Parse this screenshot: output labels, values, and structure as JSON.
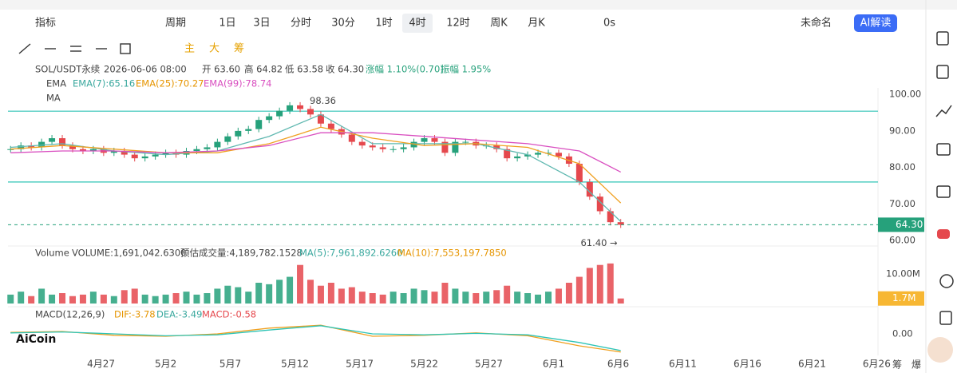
{
  "toolbar": {
    "indicator": "指标",
    "period": "周期",
    "intervals": [
      "1日",
      "3日",
      "分时",
      "30分",
      "1时",
      "4时",
      "12时",
      "周K",
      "月K"
    ],
    "countdown": "0s",
    "layout_name": "未命名",
    "ai": "AI解读",
    "tools": [
      "主",
      "大",
      "筹"
    ]
  },
  "info": {
    "symbol": "SOL/USDT永续",
    "time": "2026-06-06 08:00",
    "open": "开 63.60",
    "high": "高 64.82",
    "low": "低 63.58",
    "close": "收 64.30",
    "change": "涨幅 1.10%(0.70)",
    "amplitude": "振幅 1.95%"
  },
  "ema_legend": {
    "name": "EMA",
    "ema7": "EMA(7):65.16",
    "ema25": "EMA(25):70.27",
    "ema99": "EMA(99):78.74"
  },
  "ma_legend": "MA",
  "volume_legend": {
    "name": "Volume",
    "volume": "VOLUME:1,691,042.6300",
    "estimate": "预估成交量:4,189,782.1528",
    "ma5": "MA(5):7,961,892.6260",
    "ma10": "MA(10):7,553,197.7850"
  },
  "macd_legend": {
    "name": "MACD(12,26,9)",
    "dif": "DIF:-3.78",
    "dea": "DEA:-3.49",
    "macd": "MACD:-0.58"
  },
  "logo": "AiCoin",
  "corner": [
    "筹",
    "爆"
  ],
  "chart_data": {
    "type": "candlestick",
    "up_color": "#26a17b",
    "down_color": "#e5484d",
    "xlim": [
      0,
      67.3
    ],
    "xticks": [
      {
        "value": 7.2,
        "label": "4月27"
      },
      {
        "value": 12.2,
        "label": "5月2"
      },
      {
        "value": 17.2,
        "label": "5月7"
      },
      {
        "value": 22.2,
        "label": "5月12"
      },
      {
        "value": 27.2,
        "label": "5月17"
      },
      {
        "value": 32.2,
        "label": "5月22"
      },
      {
        "value": 37.2,
        "label": "5月27"
      },
      {
        "value": 42.2,
        "label": "6月1"
      },
      {
        "value": 47.2,
        "label": "6月6"
      },
      {
        "value": 52.2,
        "label": "6月11"
      },
      {
        "value": 57.2,
        "label": "6月16"
      },
      {
        "value": 62.2,
        "label": "6月21"
      },
      {
        "value": 67.2,
        "label": "6月26"
      }
    ],
    "ylim": [
      59,
      101
    ],
    "yticks": [
      {
        "value": 100,
        "label": "100.00"
      },
      {
        "value": 90,
        "label": "90.00"
      },
      {
        "value": 80,
        "label": "80.00"
      },
      {
        "value": 70,
        "label": "70.00"
      },
      {
        "value": 60,
        "label": "60.00"
      }
    ],
    "x": [
      0.2,
      1.0,
      1.8,
      2.6,
      3.4,
      4.2,
      5.0,
      5.8,
      6.6,
      7.4,
      8.2,
      9.0,
      9.8,
      10.6,
      11.4,
      12.2,
      13.0,
      13.8,
      14.6,
      15.4,
      16.2,
      17.0,
      17.8,
      18.6,
      19.4,
      20.2,
      21.0,
      21.8,
      22.6,
      23.4,
      24.2,
      25.0,
      25.8,
      26.6,
      27.4,
      28.2,
      29.0,
      29.8,
      30.6,
      31.4,
      32.2,
      33.0,
      33.8,
      34.6,
      35.4,
      36.2,
      37.0,
      37.8,
      38.6,
      39.4,
      40.2,
      41.0,
      41.8,
      42.6,
      43.4,
      44.2,
      45.0,
      45.8,
      46.6,
      47.4
    ],
    "close": [
      85,
      86,
      85.5,
      87,
      88,
      86,
      85,
      84.5,
      85,
      84,
      84.5,
      83.5,
      82.5,
      83,
      83.5,
      84,
      83.5,
      84.5,
      85,
      85.5,
      87,
      88.5,
      90,
      90.5,
      93,
      94,
      95.5,
      97,
      96,
      94.5,
      92,
      90.5,
      89,
      87,
      86,
      85.5,
      85,
      85,
      85.5,
      87,
      88,
      87,
      84,
      87,
      87,
      86,
      86,
      85,
      82.5,
      83,
      83.5,
      84,
      84,
      83,
      81,
      76,
      72,
      68,
      65,
      64.3
    ],
    "ema_x": [
      0.2,
      4.2,
      8.2,
      12.2,
      16.2,
      20.2,
      24.2,
      28.2,
      32.2,
      36.2,
      40.2,
      44.2,
      47.4
    ],
    "ema": [
      {
        "name": "EMA7",
        "color": "#5fb8b0",
        "values": [
          85.5,
          86.5,
          84.5,
          83.5,
          84.5,
          88.5,
          94.5,
          86.5,
          86.5,
          86.5,
          83.5,
          76,
          65.16
        ]
      },
      {
        "name": "EMA25",
        "color": "#f0a020",
        "values": [
          85,
          86,
          85,
          84,
          84,
          86.5,
          91,
          88,
          86,
          86.5,
          85.5,
          81,
          70.27
        ]
      },
      {
        "name": "EMA99",
        "color": "#d94fc0",
        "values": [
          84,
          84.5,
          84.5,
          84,
          84.5,
          86,
          89.5,
          89.5,
          88.5,
          87.5,
          86.5,
          84.5,
          78.74
        ]
      }
    ],
    "hlines": [
      95.4,
      76.0
    ],
    "hline_color": "#2ec4b6",
    "last_price": {
      "value": 64.3,
      "label": "64.30"
    },
    "high_label": {
      "value": 98.36,
      "label": "98.36"
    },
    "low_label": {
      "value": 61.4,
      "label": "61.40 →"
    },
    "volume": [
      3000000,
      4000000,
      2500000,
      5000000,
      3000000,
      3500000,
      2500000,
      3000000,
      4000000,
      3000000,
      2500000,
      4500000,
      5000000,
      3000000,
      2500000,
      3000000,
      3500000,
      4000000,
      3000000,
      3500000,
      5000000,
      6000000,
      5500000,
      4000000,
      7000000,
      6500000,
      8000000,
      9000000,
      13000000,
      8000000,
      6000000,
      7000000,
      5000000,
      5500000,
      4000000,
      3500000,
      3000000,
      4000000,
      3500000,
      5000000,
      4500000,
      4000000,
      7000000,
      5000000,
      4000000,
      3500000,
      4000000,
      4500000,
      6000000,
      4000000,
      3500000,
      3000000,
      4000000,
      5000000,
      7000000,
      9000000,
      12000000,
      13000000,
      13500000,
      1700000
    ],
    "vlim": [
      0,
      14000000
    ],
    "vticks": [
      {
        "value": 10000000,
        "label": "10.00M"
      }
    ],
    "last_volume": {
      "value": 1700000,
      "label": "1.7M"
    },
    "macd_lim": [
      -5,
      3
    ],
    "macd_ticks": [
      {
        "value": 0,
        "label": "0.00"
      }
    ],
    "macd": [
      {
        "name": "DIF",
        "color": "#f0a020",
        "values": [
          0.3,
          0.5,
          -0.3,
          -0.5,
          0,
          1.2,
          1.8,
          -0.5,
          -0.3,
          0.2,
          -0.4,
          -2.5,
          -3.78
        ]
      },
      {
        "name": "DEA",
        "color": "#2ec4b6",
        "values": [
          0.2,
          0.4,
          0,
          -0.4,
          -0.2,
          0.8,
          1.7,
          0,
          -0.2,
          0.1,
          -0.2,
          -1.8,
          -3.49
        ]
      }
    ]
  }
}
